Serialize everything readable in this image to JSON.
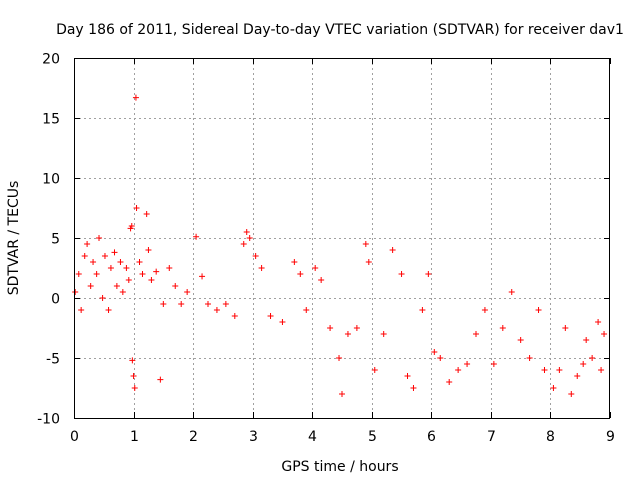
{
  "chart_data": {
    "type": "scatter",
    "title": "Day 186 of 2011, Sidereal Day-to-day VTEC variation (SDTVAR) for receiver dav1",
    "xlabel": "GPS time / hours",
    "ylabel": "SDTVAR / TECUs",
    "xlim": [
      0,
      9
    ],
    "ylim": [
      -10,
      20
    ],
    "xticks": [
      0,
      1,
      2,
      3,
      4,
      5,
      6,
      7,
      8,
      9
    ],
    "yticks": [
      -10,
      -5,
      0,
      5,
      10,
      15,
      20
    ],
    "grid": true,
    "marker": "+",
    "color": "#ff0000",
    "series": [
      {
        "name": "dav1",
        "points": [
          [
            0.02,
            0.5
          ],
          [
            0.08,
            2.0
          ],
          [
            0.12,
            -1.0
          ],
          [
            0.18,
            3.5
          ],
          [
            0.22,
            4.5
          ],
          [
            0.28,
            1.0
          ],
          [
            0.32,
            3.0
          ],
          [
            0.38,
            2.0
          ],
          [
            0.42,
            5.0
          ],
          [
            0.48,
            0.0
          ],
          [
            0.52,
            3.5
          ],
          [
            0.58,
            -1.0
          ],
          [
            0.62,
            2.5
          ],
          [
            0.68,
            3.8
          ],
          [
            0.72,
            1.0
          ],
          [
            0.78,
            3.0
          ],
          [
            0.82,
            0.5
          ],
          [
            0.88,
            2.5
          ],
          [
            0.92,
            1.5
          ],
          [
            0.95,
            5.8
          ],
          [
            0.97,
            6.0
          ],
          [
            0.98,
            -5.2
          ],
          [
            1.0,
            -6.5
          ],
          [
            1.02,
            -7.5
          ],
          [
            1.04,
            16.7
          ],
          [
            1.05,
            7.5
          ],
          [
            1.1,
            3.0
          ],
          [
            1.15,
            2.0
          ],
          [
            1.22,
            7.0
          ],
          [
            1.25,
            4.0
          ],
          [
            1.3,
            1.5
          ],
          [
            1.38,
            2.2
          ],
          [
            1.45,
            -6.8
          ],
          [
            1.5,
            -0.5
          ],
          [
            1.6,
            2.5
          ],
          [
            1.7,
            1.0
          ],
          [
            1.8,
            -0.5
          ],
          [
            1.9,
            0.5
          ],
          [
            2.05,
            5.1
          ],
          [
            2.15,
            1.8
          ],
          [
            2.25,
            -0.5
          ],
          [
            2.4,
            -1.0
          ],
          [
            2.55,
            -0.5
          ],
          [
            2.7,
            -1.5
          ],
          [
            2.85,
            4.5
          ],
          [
            2.9,
            5.5
          ],
          [
            2.95,
            5.0
          ],
          [
            3.05,
            3.5
          ],
          [
            3.15,
            2.5
          ],
          [
            3.3,
            -1.5
          ],
          [
            3.5,
            -2.0
          ],
          [
            3.7,
            3.0
          ],
          [
            3.8,
            2.0
          ],
          [
            3.9,
            -1.0
          ],
          [
            4.05,
            2.5
          ],
          [
            4.15,
            1.5
          ],
          [
            4.3,
            -2.5
          ],
          [
            4.45,
            -5.0
          ],
          [
            4.5,
            -8.0
          ],
          [
            4.6,
            -3.0
          ],
          [
            4.75,
            -2.5
          ],
          [
            4.9,
            4.5
          ],
          [
            4.95,
            3.0
          ],
          [
            5.05,
            -6.0
          ],
          [
            5.2,
            -3.0
          ],
          [
            5.35,
            4.0
          ],
          [
            5.5,
            2.0
          ],
          [
            5.6,
            -6.5
          ],
          [
            5.7,
            -7.5
          ],
          [
            5.85,
            -1.0
          ],
          [
            5.95,
            2.0
          ],
          [
            6.05,
            -4.5
          ],
          [
            6.15,
            -5.0
          ],
          [
            6.3,
            -7.0
          ],
          [
            6.45,
            -6.0
          ],
          [
            6.6,
            -5.5
          ],
          [
            6.75,
            -3.0
          ],
          [
            6.9,
            -1.0
          ],
          [
            7.05,
            -5.5
          ],
          [
            7.2,
            -2.5
          ],
          [
            7.35,
            0.5
          ],
          [
            7.5,
            -3.5
          ],
          [
            7.65,
            -5.0
          ],
          [
            7.8,
            -1.0
          ],
          [
            7.9,
            -6.0
          ],
          [
            8.05,
            -7.5
          ],
          [
            8.15,
            -6.0
          ],
          [
            8.25,
            -2.5
          ],
          [
            8.35,
            -8.0
          ],
          [
            8.45,
            -6.5
          ],
          [
            8.55,
            -5.5
          ],
          [
            8.6,
            -3.5
          ],
          [
            8.7,
            -5.0
          ],
          [
            8.8,
            -2.0
          ],
          [
            8.85,
            -6.0
          ],
          [
            8.9,
            -3.0
          ]
        ]
      }
    ]
  }
}
